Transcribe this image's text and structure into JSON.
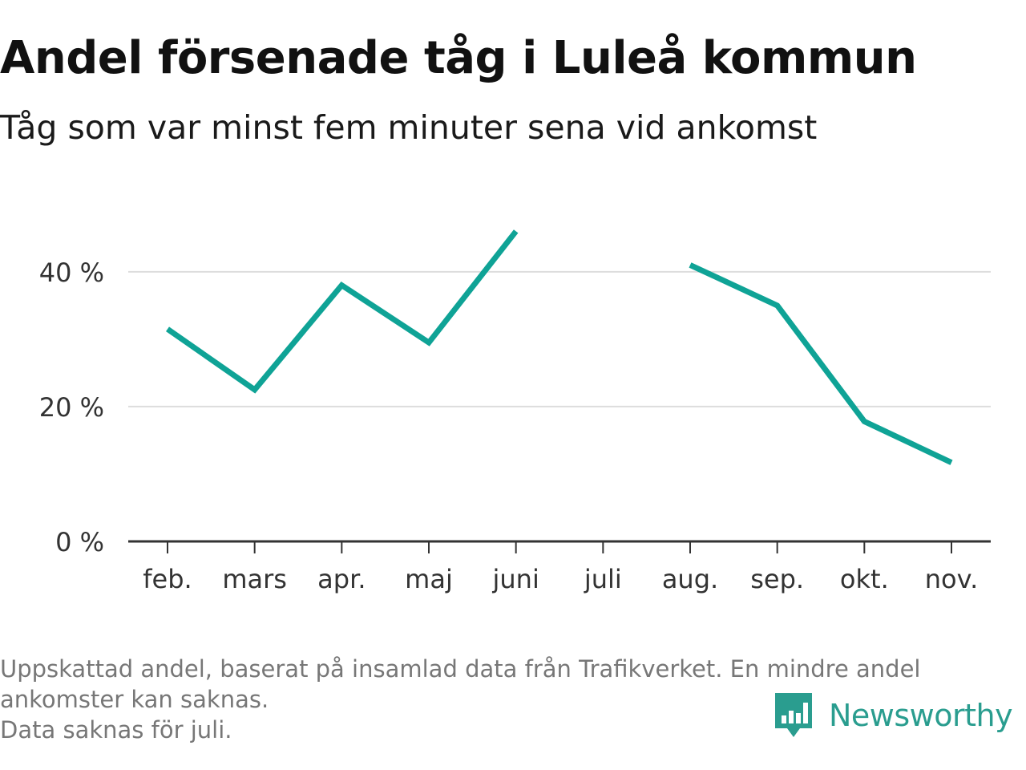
{
  "header": {
    "title": "Andel försenade tåg i Luleå kommun",
    "subtitle": "Tåg som var minst fem minuter sena vid ankomst"
  },
  "chart_data": {
    "type": "line",
    "categories": [
      "feb.",
      "mars",
      "apr.",
      "maj",
      "juni",
      "juli",
      "aug.",
      "sep.",
      "okt.",
      "nov."
    ],
    "series": [
      {
        "values": [
          31.5,
          22.5,
          38,
          29.5,
          46,
          null,
          41,
          35,
          17.8,
          11.7
        ]
      }
    ],
    "yticks": [
      0,
      20,
      40
    ],
    "ytick_labels": [
      "0 %",
      "20 %",
      "40 %"
    ],
    "ylim": [
      0,
      47
    ],
    "grid": true,
    "line_color": "#0fa396"
  },
  "footer": {
    "note_line1": "Uppskattad andel, baserat på insamlad data från Trafikverket. En mindre andel",
    "note_line2": "ankomster kan saknas.",
    "note_line3": "Data saknas för juli.",
    "brand": "Newsworthy",
    "brand_icon": "bar-chart-speech-bubble-icon",
    "brand_color": "#2a9d8f"
  }
}
